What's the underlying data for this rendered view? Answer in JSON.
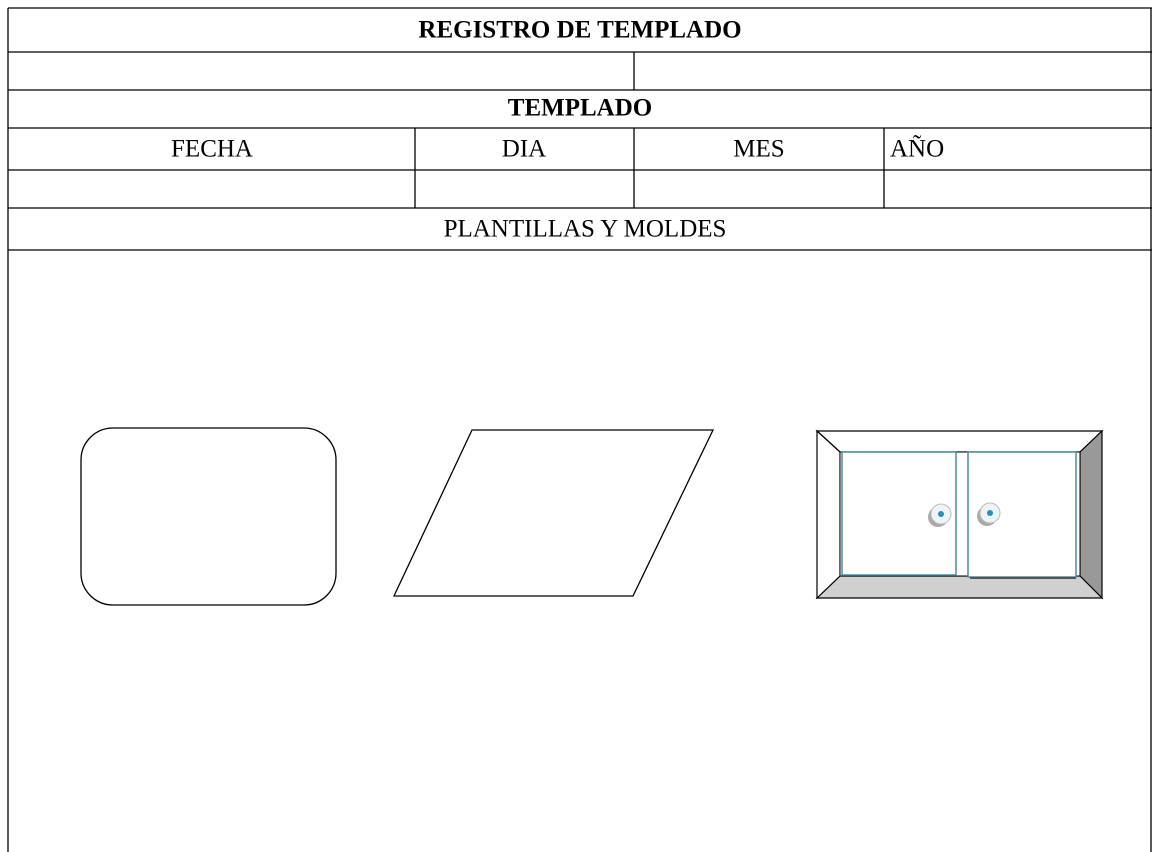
{
  "header": {
    "title": "REGISTRO DE TEMPLADO"
  },
  "section": {
    "title": "TEMPLADO"
  },
  "table": {
    "header": [
      "FECHA",
      "DIA",
      "MES",
      "AÑO"
    ]
  },
  "drawings": {
    "title": "PLANTILLAS Y MOLDES"
  }
}
